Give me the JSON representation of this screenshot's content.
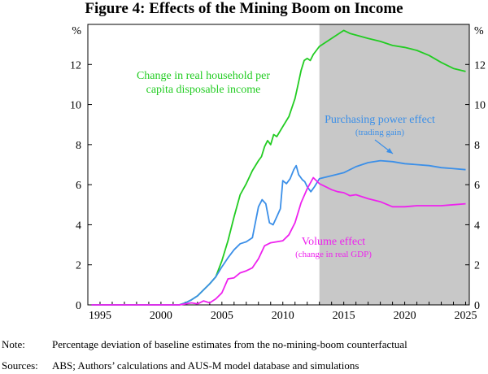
{
  "chart_data": {
    "type": "line",
    "title": "Figure 4: Effects of the Mining Boom on Income",
    "y_unit_left": "%",
    "y_unit_right": "%",
    "xlim": [
      1994,
      2025.3
    ],
    "ylim": [
      0,
      14
    ],
    "x_ticks": [
      1995,
      2000,
      2005,
      2010,
      2015,
      2020,
      2025
    ],
    "y_ticks": [
      0,
      2,
      4,
      6,
      8,
      10,
      12
    ],
    "grid": false,
    "shaded_region": {
      "x_start": 2013,
      "x_end": 2025.3,
      "color": "#c8c8c8",
      "meaning": "projection period"
    },
    "series": [
      {
        "name": "Change in real household per capita disposable income",
        "color": "#22cc22",
        "label_lines": [
          "Change in real household per",
          "capita disposable income"
        ],
        "points": [
          [
            1994.3,
            0
          ],
          [
            2001.5,
            0
          ],
          [
            2002,
            0.1
          ],
          [
            2002.5,
            0.25
          ],
          [
            2003,
            0.45
          ],
          [
            2003.5,
            0.75
          ],
          [
            2004,
            1.05
          ],
          [
            2004.5,
            1.4
          ],
          [
            2005,
            2.2
          ],
          [
            2005.5,
            3.2
          ],
          [
            2006,
            4.4
          ],
          [
            2006.5,
            5.5
          ],
          [
            2007,
            6.05
          ],
          [
            2007.5,
            6.7
          ],
          [
            2008,
            7.2
          ],
          [
            2008.25,
            7.4
          ],
          [
            2008.5,
            7.9
          ],
          [
            2008.75,
            8.2
          ],
          [
            2009,
            8.0
          ],
          [
            2009.25,
            8.5
          ],
          [
            2009.5,
            8.4
          ],
          [
            2010,
            8.9
          ],
          [
            2010.5,
            9.4
          ],
          [
            2011,
            10.3
          ],
          [
            2011.25,
            11.0
          ],
          [
            2011.5,
            11.7
          ],
          [
            2011.75,
            12.2
          ],
          [
            2012,
            12.3
          ],
          [
            2012.25,
            12.2
          ],
          [
            2012.5,
            12.5
          ],
          [
            2012.75,
            12.7
          ],
          [
            2013,
            12.9
          ],
          [
            2014,
            13.3
          ],
          [
            2015,
            13.7
          ],
          [
            2015.5,
            13.55
          ],
          [
            2017,
            13.3
          ],
          [
            2018,
            13.15
          ],
          [
            2019,
            12.95
          ],
          [
            2020,
            12.85
          ],
          [
            2021,
            12.7
          ],
          [
            2022,
            12.45
          ],
          [
            2023,
            12.1
          ],
          [
            2024,
            11.8
          ],
          [
            2025,
            11.65
          ]
        ]
      },
      {
        "name": "Purchasing power effect",
        "sub_label": "(trading gain)",
        "color": "#3b8fe8",
        "points": [
          [
            1994.3,
            0
          ],
          [
            2001.5,
            0
          ],
          [
            2002,
            0.1
          ],
          [
            2002.5,
            0.25
          ],
          [
            2003,
            0.45
          ],
          [
            2003.5,
            0.75
          ],
          [
            2004,
            1.05
          ],
          [
            2004.5,
            1.4
          ],
          [
            2005,
            1.9
          ],
          [
            2005.5,
            2.35
          ],
          [
            2006,
            2.75
          ],
          [
            2006.5,
            3.05
          ],
          [
            2007,
            3.15
          ],
          [
            2007.5,
            3.35
          ],
          [
            2008,
            4.9
          ],
          [
            2008.3,
            5.25
          ],
          [
            2008.6,
            5.05
          ],
          [
            2008.9,
            4.1
          ],
          [
            2009.2,
            4.0
          ],
          [
            2009.5,
            4.4
          ],
          [
            2009.8,
            4.8
          ],
          [
            2010,
            6.2
          ],
          [
            2010.3,
            6.05
          ],
          [
            2010.6,
            6.3
          ],
          [
            2010.9,
            6.75
          ],
          [
            2011.1,
            6.95
          ],
          [
            2011.3,
            6.5
          ],
          [
            2011.6,
            6.25
          ],
          [
            2011.8,
            6.15
          ],
          [
            2012,
            5.9
          ],
          [
            2012.3,
            5.65
          ],
          [
            2012.6,
            5.9
          ],
          [
            2013,
            6.3
          ],
          [
            2014,
            6.45
          ],
          [
            2015,
            6.6
          ],
          [
            2016,
            6.9
          ],
          [
            2017,
            7.1
          ],
          [
            2018,
            7.2
          ],
          [
            2019,
            7.15
          ],
          [
            2020,
            7.05
          ],
          [
            2021,
            7.0
          ],
          [
            2022,
            6.95
          ],
          [
            2023,
            6.85
          ],
          [
            2024,
            6.8
          ],
          [
            2025,
            6.75
          ]
        ]
      },
      {
        "name": "Volume effect",
        "sub_label": "(change in real GDP)",
        "color": "#ee22ee",
        "points": [
          [
            1994.3,
            0
          ],
          [
            2001.5,
            0
          ],
          [
            2002,
            0.05
          ],
          [
            2002.5,
            0.1
          ],
          [
            2003,
            0.05
          ],
          [
            2003.5,
            0.2
          ],
          [
            2004,
            0.1
          ],
          [
            2004.5,
            0.3
          ],
          [
            2005,
            0.6
          ],
          [
            2005.5,
            1.3
          ],
          [
            2006,
            1.35
          ],
          [
            2006.5,
            1.6
          ],
          [
            2007,
            1.7
          ],
          [
            2007.5,
            1.85
          ],
          [
            2008,
            2.3
          ],
          [
            2008.5,
            2.95
          ],
          [
            2009,
            3.1
          ],
          [
            2009.5,
            3.15
          ],
          [
            2010,
            3.2
          ],
          [
            2010.5,
            3.5
          ],
          [
            2011,
            4.1
          ],
          [
            2011.5,
            5.1
          ],
          [
            2012,
            5.8
          ],
          [
            2012.5,
            6.35
          ],
          [
            2013,
            6.05
          ],
          [
            2013.5,
            5.9
          ],
          [
            2014,
            5.75
          ],
          [
            2014.5,
            5.65
          ],
          [
            2015,
            5.6
          ],
          [
            2015.5,
            5.45
          ],
          [
            2016,
            5.5
          ],
          [
            2017,
            5.3
          ],
          [
            2018,
            5.15
          ],
          [
            2019,
            4.9
          ],
          [
            2020,
            4.9
          ],
          [
            2021,
            4.95
          ],
          [
            2022,
            4.95
          ],
          [
            2023,
            4.95
          ],
          [
            2024,
            5.0
          ],
          [
            2025,
            5.05
          ]
        ]
      }
    ]
  },
  "notes": {
    "note_label": "Note:",
    "note_text": "Percentage deviation of baseline estimates from the no-mining-boom counterfactual",
    "sources_label": "Sources:",
    "sources_text": "ABS; Authors’ calculations and AUS-M model database and simulations"
  }
}
